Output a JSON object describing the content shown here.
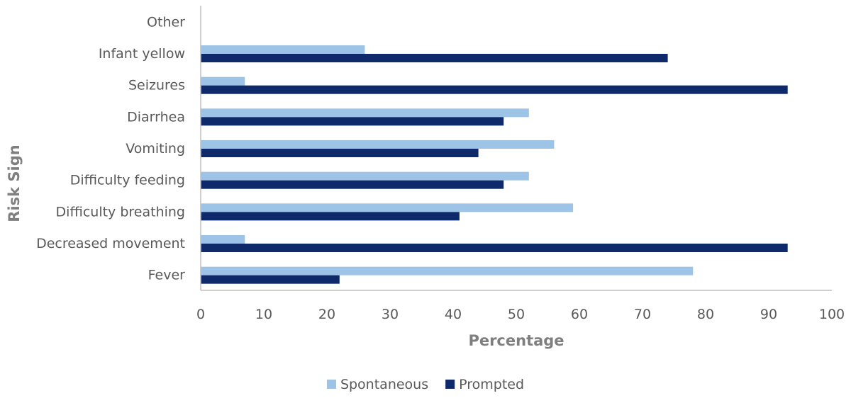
{
  "chart_data": {
    "type": "bar",
    "orientation": "horizontal",
    "categories": [
      "Fever",
      "Decreased movement",
      "Difficulty breathing",
      "Difficulty feeding",
      "Vomiting",
      "Diarrhea",
      "Seizures",
      "Infant yellow",
      "Other"
    ],
    "series": [
      {
        "name": "Spontaneous",
        "color": "#9dc3e6",
        "values": [
          78,
          7,
          59,
          52,
          56,
          52,
          7,
          26,
          0
        ]
      },
      {
        "name": "Prompted",
        "color": "#0e2a6b",
        "values": [
          22,
          93,
          41,
          48,
          44,
          48,
          93,
          74,
          0
        ]
      }
    ],
    "xlabel": "Percentage",
    "ylabel": "Risk Sign",
    "xlim": [
      0,
      100
    ],
    "xticks": [
      0,
      10,
      20,
      30,
      40,
      50,
      60,
      70,
      80,
      90,
      100
    ],
    "grid": false,
    "legend": "bottom"
  }
}
